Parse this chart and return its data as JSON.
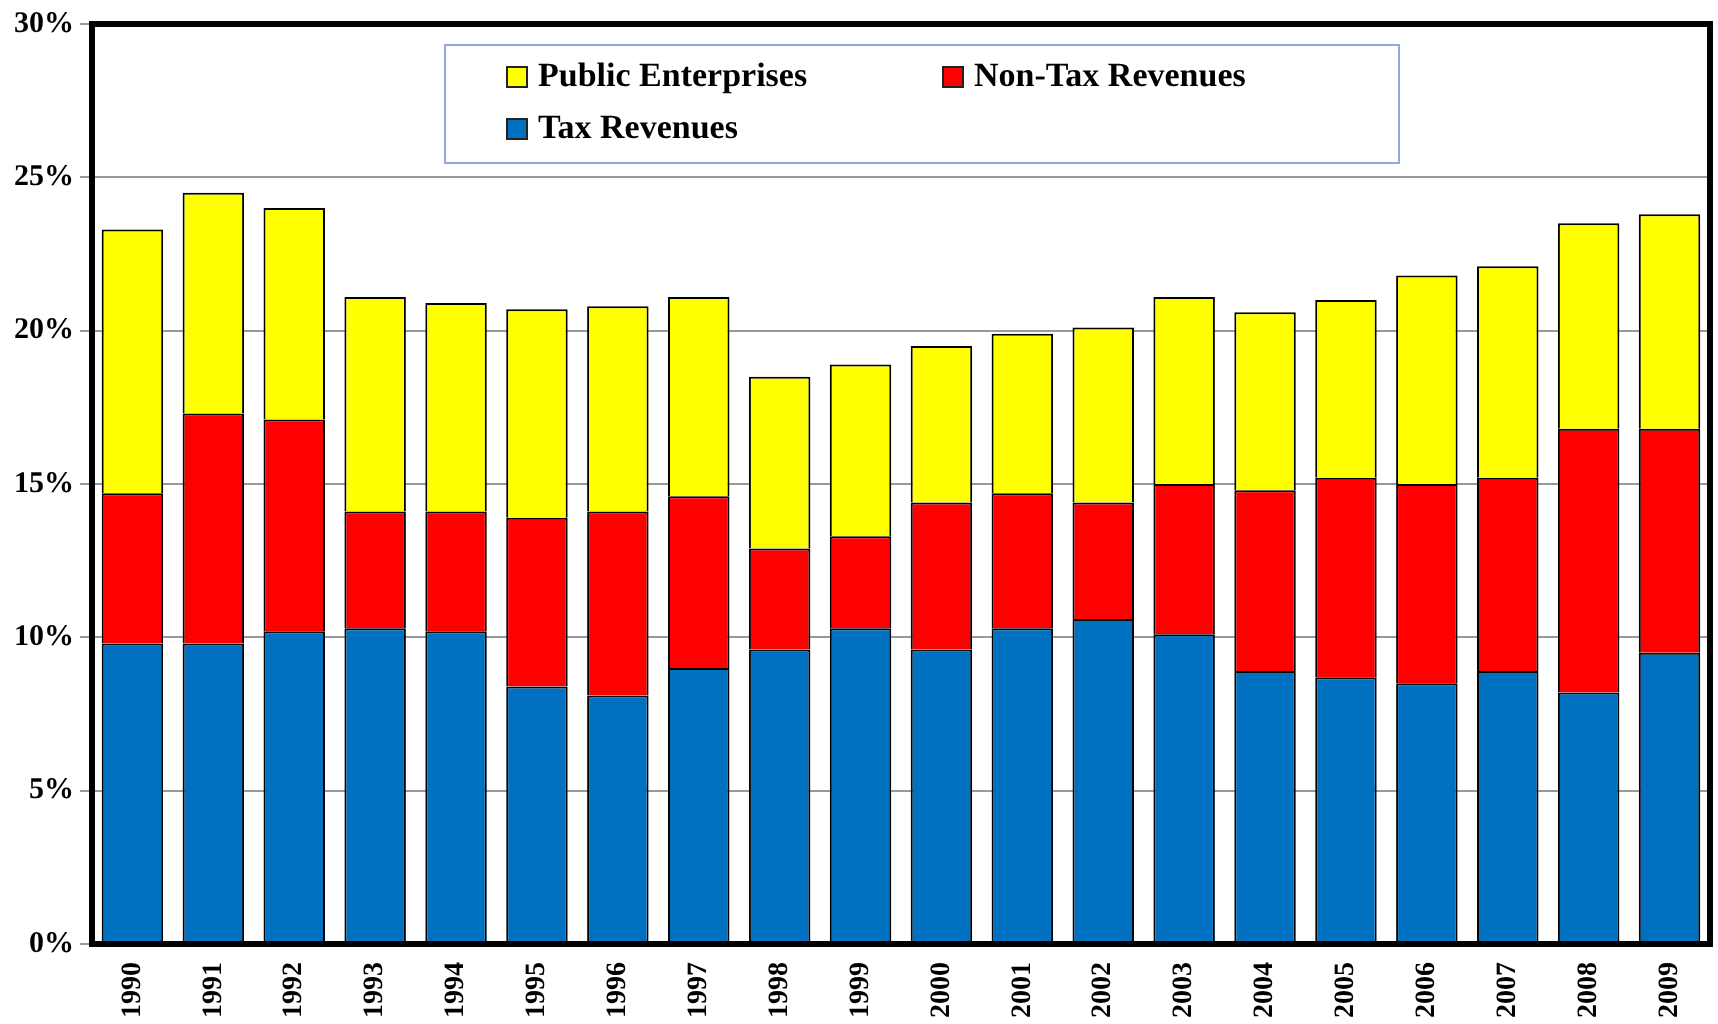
{
  "chart_data": {
    "type": "bar",
    "stacked": true,
    "categories": [
      "1990",
      "1991",
      "1992",
      "1993",
      "1994",
      "1995",
      "1996",
      "1997",
      "1998",
      "1999",
      "2000",
      "2001",
      "2002",
      "2003",
      "2004",
      "2005",
      "2006",
      "2007",
      "2008",
      "2009"
    ],
    "series": [
      {
        "name": "Tax Revenues",
        "color": "#0070c0",
        "values": [
          9.8,
          9.8,
          10.2,
          10.3,
          10.2,
          8.4,
          8.1,
          9.0,
          9.6,
          10.3,
          9.6,
          10.3,
          10.6,
          10.1,
          8.9,
          8.7,
          8.5,
          8.9,
          8.2,
          9.5
        ]
      },
      {
        "name": "Non-Tax Revenues",
        "color": "#ff0000",
        "values": [
          4.9,
          7.5,
          6.9,
          3.8,
          3.9,
          5.5,
          6.0,
          5.6,
          3.3,
          3.0,
          4.8,
          4.4,
          3.8,
          4.9,
          5.9,
          6.5,
          6.5,
          6.3,
          8.6,
          7.3
        ]
      },
      {
        "name": "Public Enterprises",
        "color": "#ffff00",
        "values": [
          8.6,
          7.2,
          6.9,
          7.0,
          6.8,
          6.8,
          6.7,
          6.5,
          5.6,
          5.6,
          5.1,
          5.2,
          5.7,
          6.1,
          5.8,
          5.8,
          6.8,
          6.9,
          6.7,
          7.0
        ]
      }
    ],
    "ylim": [
      0,
      30
    ],
    "yticks": [
      {
        "value": 0,
        "label": "0%"
      },
      {
        "value": 5,
        "label": "5%"
      },
      {
        "value": 10,
        "label": "10%"
      },
      {
        "value": 15,
        "label": "15%"
      },
      {
        "value": 20,
        "label": "20%"
      },
      {
        "value": 25,
        "label": "25%"
      },
      {
        "value": 30,
        "label": "30%"
      }
    ],
    "grid": "y",
    "legend": "top"
  }
}
